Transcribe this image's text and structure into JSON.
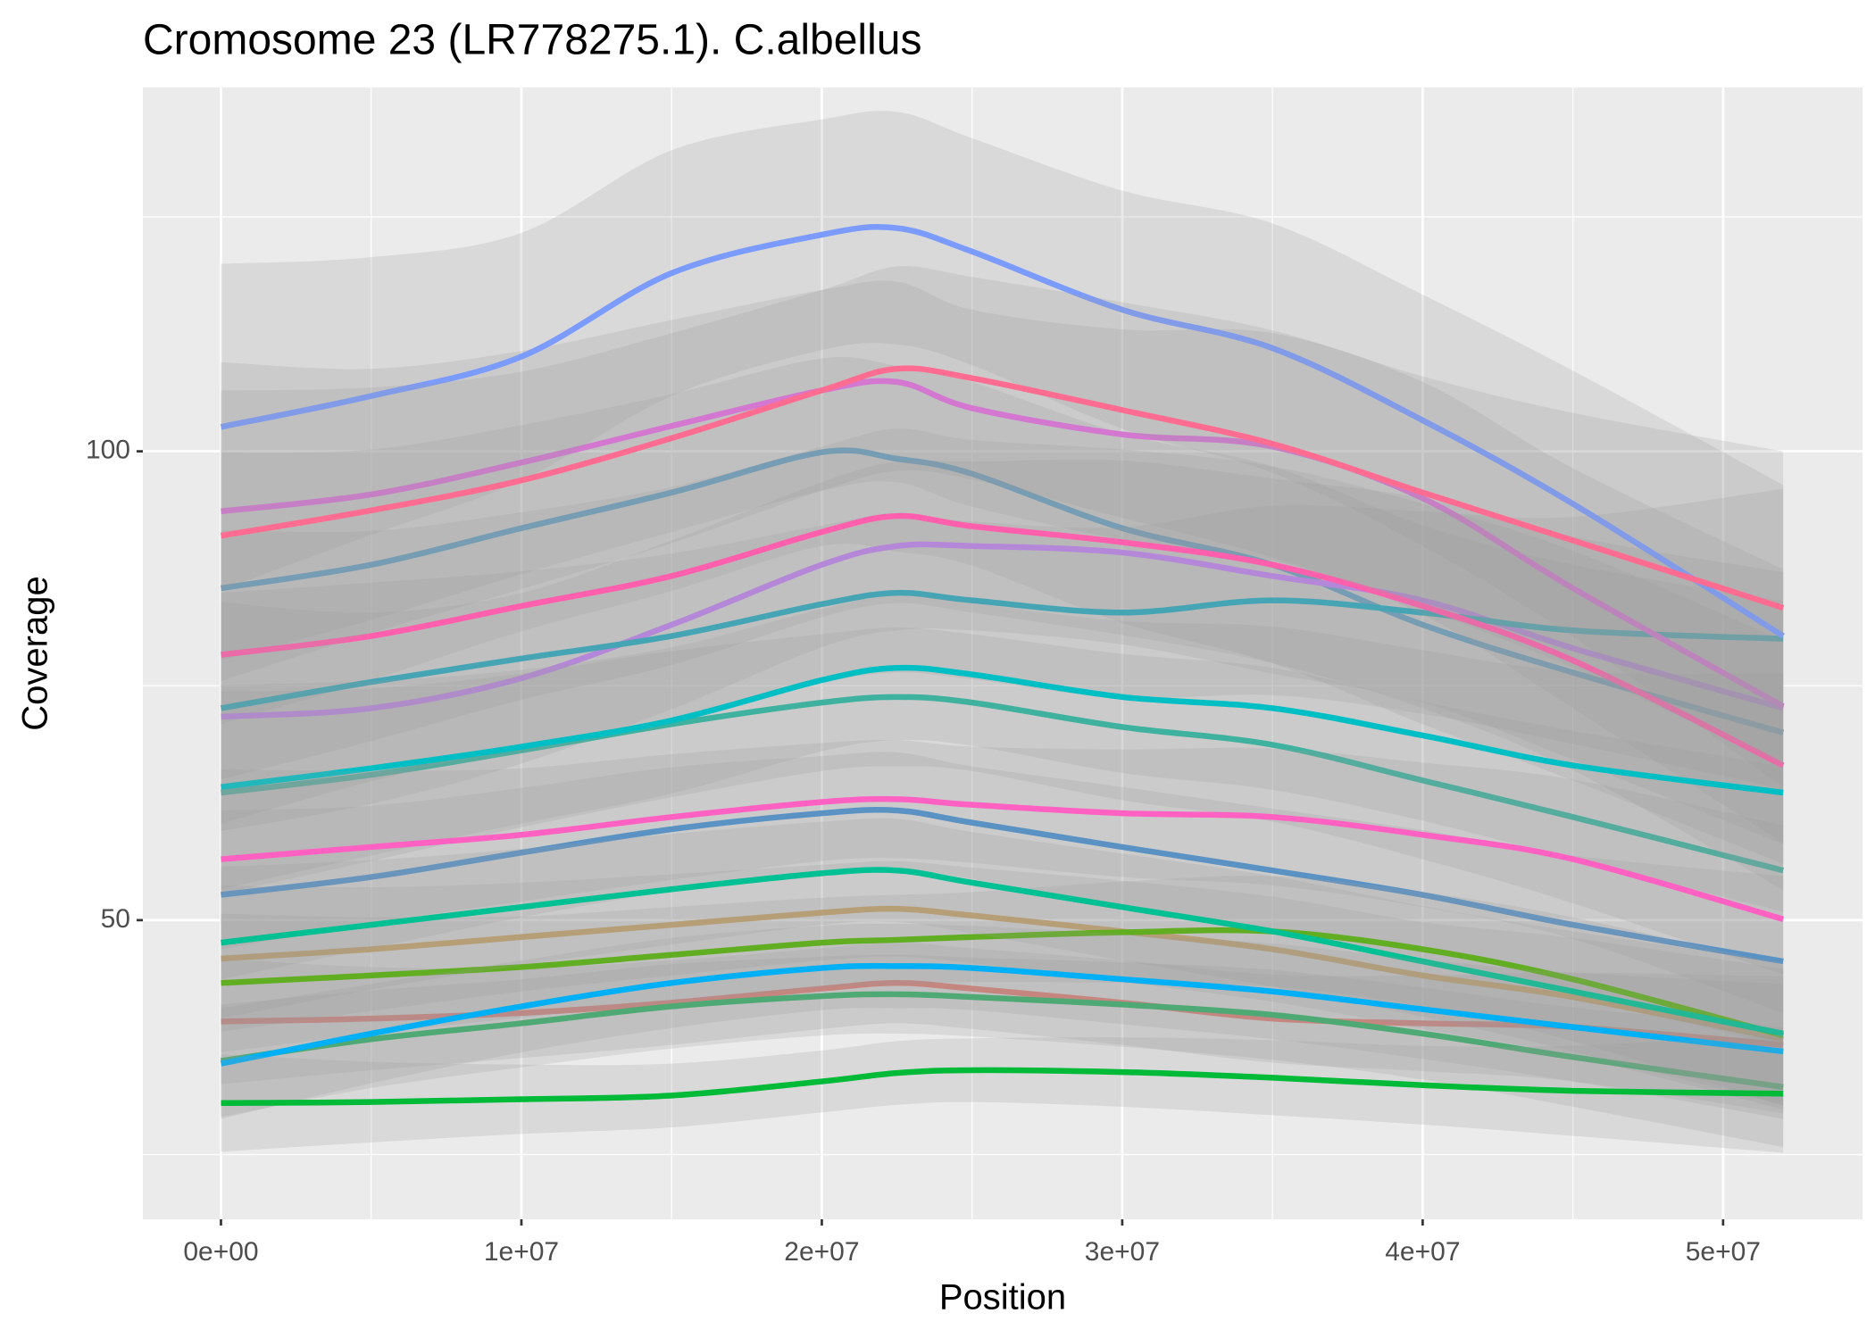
{
  "chart_data": {
    "type": "smooth-line",
    "title": "Cromosome 23 (LR778275.1). C.albellus",
    "x_label": "Position",
    "y_label": "Coverage",
    "x": [
      0,
      5000000,
      10000000,
      15000000,
      20000000,
      22500000,
      25000000,
      30000000,
      35000000,
      40000000,
      45000000,
      52000000
    ],
    "xlim": [
      -2600000,
      54640000
    ],
    "xticks": [
      {
        "value": 0,
        "label": "0e+00"
      },
      {
        "value": 10000000,
        "label": "1e+07"
      },
      {
        "value": 20000000,
        "label": "2e+07"
      },
      {
        "value": 30000000,
        "label": "3e+07"
      },
      {
        "value": 40000000,
        "label": "4e+07"
      },
      {
        "value": 50000000,
        "label": "5e+07"
      }
    ],
    "x_minor_grid": [
      5000000,
      15000000,
      25000000,
      35000000,
      45000000
    ],
    "ylim": [
      18.1,
      138.8
    ],
    "yticks": [
      50,
      100
    ],
    "y_minor_grid": [
      25,
      75,
      125
    ],
    "grid": true,
    "ribbon_color": "#999999",
    "series": [
      {
        "color": "#e07a70",
        "values": [
          39.2,
          39.5,
          40.1,
          41.2,
          42.7,
          43.3,
          42.7,
          41.2,
          39.5,
          39,
          38.6,
          36.7
        ],
        "lower": [
          32.5,
          34,
          35.3,
          36.7,
          38.4,
          39,
          38.4,
          36.7,
          34.8,
          33.9,
          32.8,
          29.4
        ],
        "upper": [
          45.9,
          45,
          44.9,
          45.7,
          47,
          47.6,
          47,
          45.7,
          44.2,
          44.1,
          44.4,
          44
        ]
      },
      {
        "color": "#c8a060",
        "values": [
          45.9,
          46.9,
          48.2,
          49.5,
          50.8,
          51.2,
          50.5,
          48.8,
          46.9,
          44.1,
          41.8,
          37.3
        ],
        "lower": [
          38.1,
          40.3,
          42.4,
          44.1,
          45.7,
          46.1,
          45.4,
          43.4,
          41.3,
          38.4,
          35.5,
          29.8
        ],
        "upper": [
          53.7,
          53.5,
          54,
          54.9,
          55.9,
          56.3,
          55.6,
          54.2,
          52.5,
          49.8,
          48.1,
          44.8
        ]
      },
      {
        "color": "#4fa0cf",
        "values": [
          85.4,
          87.9,
          91.8,
          95.6,
          99.9,
          99.2,
          97.6,
          91.8,
          87.9,
          81.5,
          76.4,
          70
        ],
        "lower": [
          70.9,
          75.6,
          80.8,
          85.1,
          89.9,
          89.3,
          87.8,
          81.7,
          77.4,
          70.9,
          64.9,
          56
        ],
        "upper": [
          99.9,
          100.2,
          102.8,
          106.1,
          109.9,
          109.1,
          107.4,
          101.9,
          98.4,
          92.1,
          87.9,
          84
        ]
      },
      {
        "color": "#26b8a0",
        "values": [
          63.6,
          65.5,
          68.1,
          70.9,
          73.2,
          73.8,
          73.2,
          70.6,
          68.7,
          64.9,
          61,
          55.3
        ],
        "lower": [
          52.8,
          56.3,
          59.9,
          63.1,
          65.9,
          66.4,
          65.9,
          62.8,
          60.5,
          56.5,
          51.8,
          44.2
        ],
        "upper": [
          74.4,
          74.7,
          76.3,
          78.7,
          80.5,
          81.2,
          80.5,
          78.4,
          76.9,
          73.3,
          70.2,
          66.4
        ]
      },
      {
        "color": "#c77cff",
        "values": [
          71.7,
          72.6,
          75.8,
          81.5,
          87.9,
          89.9,
          89.9,
          89.2,
          86.7,
          84.1,
          79,
          72.6
        ],
        "lower": [
          59.5,
          62.4,
          66.7,
          72.5,
          79.1,
          80.9,
          80.9,
          79.4,
          76.3,
          73.2,
          67.1,
          58.1
        ],
        "upper": [
          83.9,
          82.8,
          84.9,
          90.5,
          96.7,
          98.9,
          98.9,
          99,
          97.1,
          95,
          90.9,
          87.1
        ]
      },
      {
        "color": "#3aae6a",
        "values": [
          35,
          37.3,
          39,
          40.8,
          41.9,
          42.1,
          41.8,
          41,
          39.9,
          37.9,
          35.4,
          32.2
        ],
        "lower": [
          29,
          32.1,
          34.3,
          36.3,
          37.7,
          37.9,
          37.6,
          36.5,
          35.1,
          33,
          30.1,
          25.8
        ],
        "upper": [
          41,
          42.5,
          43.7,
          45.3,
          46.1,
          46.3,
          46,
          45.5,
          44.7,
          42.8,
          40.7,
          38.6
        ]
      },
      {
        "color": "#2fa8bb",
        "values": [
          72.6,
          75.4,
          77.9,
          80.3,
          83.7,
          84.9,
          84.1,
          82.8,
          84.1,
          82.8,
          80.9,
          80
        ],
        "lower": [
          60.3,
          64.8,
          68.6,
          71.5,
          75.3,
          76.4,
          75.7,
          73.7,
          74,
          72,
          68.8,
          64
        ],
        "upper": [
          84.9,
          86,
          87.2,
          89.1,
          92.1,
          93.4,
          92.5,
          91.9,
          94.2,
          93.6,
          93,
          96
        ]
      },
      {
        "color": "#e36ee0",
        "values": [
          93.6,
          95.4,
          98.8,
          102.7,
          106.5,
          107.4,
          104.6,
          101.8,
          100.5,
          95,
          85.4,
          72.8
        ],
        "lower": [
          77.7,
          82,
          86.9,
          91.4,
          95.8,
          96.7,
          94.1,
          90.6,
          88.4,
          82.6,
          72.6,
          58.2
        ],
        "upper": [
          109.5,
          108.8,
          110.7,
          114,
          117.2,
          118.1,
          115.1,
          113,
          112.6,
          107.4,
          98.2,
          87.4
        ]
      },
      {
        "color": "#4a90d0",
        "values": [
          52.7,
          54.6,
          57.2,
          59.7,
          61.4,
          61.7,
          60.4,
          57.8,
          55.3,
          52.7,
          49.5,
          45.6
        ],
        "lower": [
          43.7,
          47,
          50.3,
          53.1,
          55.3,
          55.5,
          54.4,
          51.4,
          48.7,
          45.8,
          42.1,
          36.5
        ],
        "upper": [
          61.7,
          62.2,
          64.1,
          66.3,
          67.5,
          67.9,
          66.4,
          64.2,
          61.9,
          59.6,
          56.9,
          54.7
        ]
      },
      {
        "color": "#53b400",
        "values": [
          43.3,
          44.1,
          45,
          46.3,
          47.6,
          47.9,
          48.2,
          48.7,
          48.8,
          46.9,
          43.7,
          37.7
        ],
        "lower": [
          35.9,
          37.9,
          39.6,
          41.2,
          42.8,
          43.1,
          43.4,
          43.3,
          42.9,
          40.8,
          37.1,
          30.2
        ],
        "upper": [
          50.7,
          50.3,
          50.4,
          51.4,
          52.4,
          52.7,
          53,
          54.1,
          54.7,
          53,
          50.3,
          45.2
        ]
      },
      {
        "color": "#7b9bff",
        "values": [
          102.6,
          105.9,
          110.1,
          119,
          123.1,
          123.8,
          121.3,
          115.1,
          111,
          103.3,
          94.4,
          80.3
        ],
        "lower": [
          85.2,
          91.1,
          96.9,
          105.9,
          110.8,
          111.4,
          109.2,
          102.4,
          97.7,
          89.9,
          80.2,
          64.2
        ],
        "upper": [
          120,
          120.7,
          123.3,
          132.1,
          135.4,
          136.2,
          133.4,
          127.8,
          124.3,
          116.7,
          108.6,
          96.4
        ]
      },
      {
        "color": "#ff5fad",
        "values": [
          78.3,
          80.3,
          83.5,
          86.7,
          91.4,
          93.1,
          92,
          90.3,
          87.9,
          83.5,
          77.7,
          66.5
        ],
        "lower": [
          65,
          69.1,
          73.5,
          77.2,
          82.3,
          83.8,
          82.8,
          80.4,
          77.4,
          72.6,
          66,
          53.2
        ],
        "upper": [
          91.6,
          91.5,
          93.5,
          96.2,
          100.5,
          102.4,
          101.2,
          100.2,
          98.4,
          94.4,
          89.4,
          79.8
        ]
      },
      {
        "color": "#00bfc4",
        "values": [
          64.2,
          66.2,
          68.5,
          71.3,
          75.6,
          76.9,
          76.2,
          73.8,
          72.6,
          69.7,
          66.5,
          63.6
        ],
        "lower": [
          53.3,
          56.9,
          60.3,
          63.5,
          68,
          69.2,
          68.6,
          65.7,
          63.9,
          60.6,
          56.5,
          50.9
        ],
        "upper": [
          75.1,
          75.5,
          76.7,
          79.1,
          83.2,
          84.6,
          83.8,
          81.9,
          81.3,
          78.8,
          76.5,
          76.3
        ]
      },
      {
        "color": "#ff61c3",
        "values": [
          56.5,
          57.8,
          59.1,
          61,
          62.6,
          62.9,
          62.3,
          61.4,
          61,
          59.1,
          56.5,
          50.1
        ],
        "lower": [
          46.9,
          49.7,
          52,
          54.3,
          56.3,
          56.6,
          56.1,
          54.6,
          53.7,
          51.4,
          48,
          40.1
        ],
        "upper": [
          66.1,
          65.9,
          66.2,
          67.7,
          68.9,
          69.2,
          68.5,
          68.2,
          68.3,
          66.8,
          65,
          60.1
        ]
      },
      {
        "color": "#00c094",
        "values": [
          47.6,
          49.5,
          51.4,
          53.3,
          55,
          55.3,
          54,
          51.4,
          48.8,
          45.6,
          42.4,
          37.9
        ],
        "lower": [
          39.5,
          42.6,
          45.2,
          47.4,
          49.5,
          49.8,
          48.6,
          45.7,
          42.9,
          39.7,
          36,
          30.3
        ],
        "upper": [
          55.7,
          56.4,
          57.6,
          59.2,
          60.5,
          60.8,
          59.4,
          57.1,
          54.7,
          51.5,
          48.8,
          45.5
        ]
      },
      {
        "color": "#00b0f6",
        "values": [
          34.7,
          37.9,
          40.8,
          43.3,
          44.9,
          45.1,
          44.9,
          43.7,
          42.4,
          40.5,
          38.6,
          36
        ],
        "lower": [
          28.8,
          32.6,
          35.9,
          38.5,
          40.4,
          40.6,
          40.4,
          38.9,
          37.3,
          35.2,
          32.8,
          28.8
        ],
        "upper": [
          40.6,
          43.2,
          45.7,
          48.1,
          49.4,
          49.6,
          49.4,
          48.5,
          47.5,
          45.8,
          44.4,
          43.2
        ]
      },
      {
        "color": "#00ba38",
        "values": [
          30.5,
          30.6,
          30.9,
          31.3,
          32.8,
          33.7,
          34,
          33.8,
          33.2,
          32.4,
          31.8,
          31.5
        ],
        "lower": [
          25.3,
          26.3,
          27.2,
          27.9,
          29.5,
          30.3,
          30.6,
          30.1,
          29.2,
          28.2,
          27,
          25.2
        ],
        "upper": [
          35.7,
          34.9,
          34.6,
          34.7,
          36.1,
          37.1,
          37.4,
          37.5,
          37.2,
          36.6,
          36.6,
          37.8
        ]
      },
      {
        "color": "#ff6c91",
        "values": [
          91,
          93.7,
          96.9,
          101.4,
          106.5,
          108.8,
          107.8,
          104.4,
          100.8,
          95.6,
          90.5,
          83.3
        ],
        "lower": [
          75.5,
          80.6,
          85.3,
          90.2,
          95.8,
          97.9,
          97,
          92.9,
          88.7,
          83.2,
          76.9,
          66.6
        ],
        "upper": [
          106.5,
          106.8,
          108.5,
          112.6,
          117.2,
          119.7,
          118.6,
          115.9,
          112.9,
          108,
          104.1,
          100
        ]
      }
    ]
  }
}
